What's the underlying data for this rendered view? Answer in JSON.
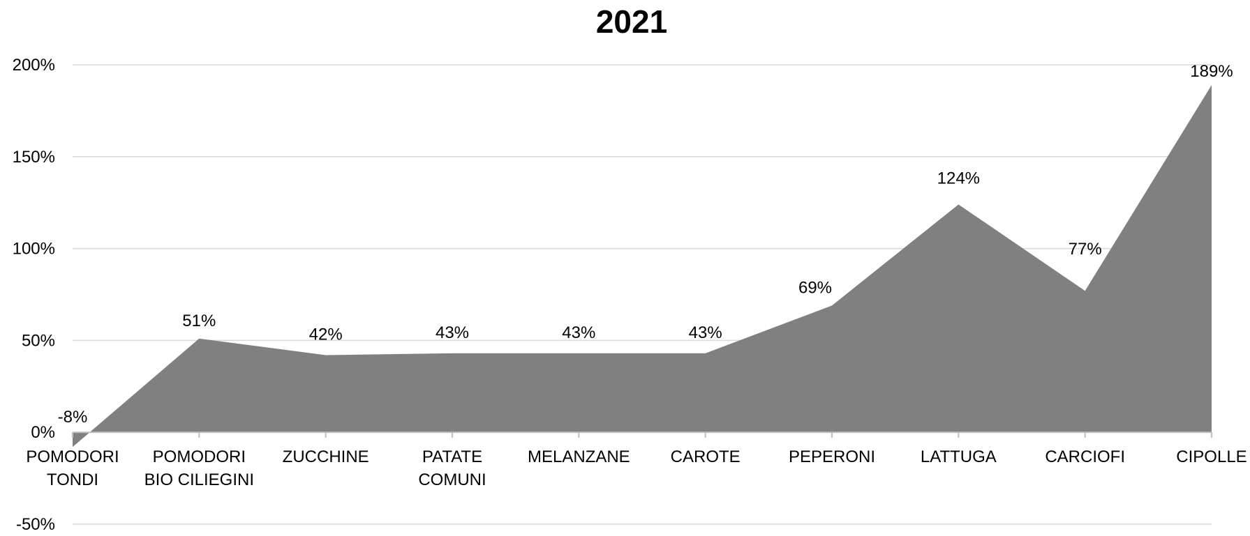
{
  "chart_data": {
    "type": "area",
    "title": "2021",
    "xlabel": "",
    "ylabel": "",
    "categories": [
      [
        "POMODORI",
        "TONDI"
      ],
      [
        "POMODORI",
        "BIO CILIEGINI"
      ],
      [
        "ZUCCHINE"
      ],
      [
        "PATATE",
        "COMUNI"
      ],
      [
        "MELANZANE"
      ],
      [
        "CAROTE"
      ],
      [
        "PEPERONI"
      ],
      [
        "LATTUGA"
      ],
      [
        "CARCIOFI"
      ],
      [
        "CIPOLLE"
      ]
    ],
    "values": [
      -8,
      51,
      42,
      43,
      43,
      43,
      69,
      124,
      77,
      189
    ],
    "data_labels": [
      "-8%",
      "51%",
      "42%",
      "43%",
      "43%",
      "43%",
      "69%",
      "124%",
      "77%",
      "189%"
    ],
    "y_ticks": [
      {
        "value": 200,
        "label": "200%"
      },
      {
        "value": 150,
        "label": "150%"
      },
      {
        "value": 100,
        "label": "100%"
      },
      {
        "value": 50,
        "label": "50%"
      },
      {
        "value": 0,
        "label": "0%"
      },
      {
        "value": -50,
        "label": "-50%"
      }
    ],
    "ylim": [
      -50,
      200
    ],
    "grid": true,
    "legend": "none",
    "colors": {
      "fill": "#808080",
      "grid": "#d9d9d9",
      "axis": "#bfbfbf",
      "text": "#000000"
    }
  }
}
